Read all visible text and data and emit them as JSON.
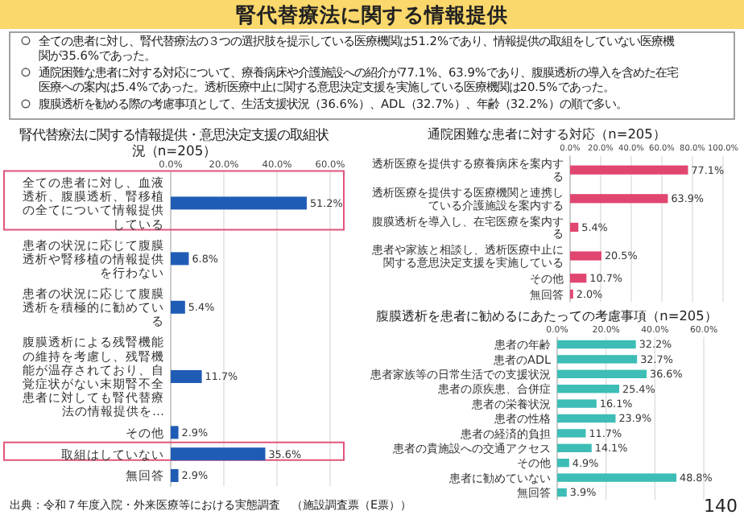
{
  "chart_data": [
    {
      "type": "other",
      "title": "腎代替療法に関する情報提供",
      "annotations": [
        "全ての患者に対し、腎代替療法の３つの選択肢を提示している医療機関は51.2%であり、情報提供の取組をしていない医療機関が35.6%であった。",
        "通院困難な患者に対する対応について、療養病床や介護施設への紹介が77.1%、63.9%であり、腹膜透析の導入を含めた在宅医療への案内は5.4%であった。透析医療中止に関する意思決定支援を実施している医療機関は20.5%であった。",
        "腹膜透析を勧める際の考慮事項として、生活支援状況（36.6%）、ADL（32.7%）、年齢（32.2%）の順で多い。",
        "出典：令和７年度入院・外来医療等における実態調査　（施設調査票（E票））",
        "140"
      ]
    },
    {
      "type": "bar",
      "orientation": "horizontal",
      "title": "腎代替療法に関する情報提供・意思決定支援の取組状況（n=205）",
      "categories": [
        "全ての患者に対し、血液透析、腹膜透析、腎移植の全てについて情報提供している",
        "患者の状況に応じて腹膜透析や腎移植の情報提供を行わない",
        "患者の状況に応じて腹膜透析を積極的に勧めている",
        "腹膜透析による残腎機能の維持を考慮し、残腎機能が温存されており、自覚症状がない末期腎不全患者に対しても腎代替療法の情報提供を…",
        "その他",
        "取組はしていない",
        "無回答"
      ],
      "values": [
        51.2,
        6.8,
        5.4,
        11.7,
        2.9,
        35.6,
        2.9
      ],
      "value_labels": [
        "51.2%",
        "6.8%",
        "5.4%",
        "11.7%",
        "2.9%",
        "35.6%",
        "2.9%"
      ],
      "color": "#1f5cb5",
      "xlim": [
        0,
        60
      ],
      "xticks": [
        {
          "value": 0,
          "label": "0.0%"
        },
        {
          "value": 20,
          "label": "20.0%"
        },
        {
          "value": 40,
          "label": "40.0%"
        },
        {
          "value": 60,
          "label": "60.0%"
        }
      ],
      "grid": "x"
    },
    {
      "type": "bar",
      "orientation": "horizontal",
      "title": "通院困難な患者に対する対応（n=205）",
      "categories": [
        "透析医療を提供する療養病床を案内する",
        "透析医療を提供する医療機関と連携している介護施設を案内する",
        "腹膜透析を導入し、在宅医療を案内する",
        "患者や家族と相談し、透析医療中止に関する意思決定支援を実施している",
        "その他",
        "無回答"
      ],
      "values": [
        77.1,
        63.9,
        5.4,
        20.5,
        10.7,
        2.0
      ],
      "value_labels": [
        "77.1%",
        "63.9%",
        "5.4%",
        "20.5%",
        "10.7%",
        "2.0%"
      ],
      "color": "#e0466f",
      "xlim": [
        0,
        100
      ],
      "xticks": [
        {
          "value": 0,
          "label": "0.0%"
        },
        {
          "value": 20,
          "label": "20.0%"
        },
        {
          "value": 40,
          "label": "40.0%"
        },
        {
          "value": 60,
          "label": "60.0%"
        },
        {
          "value": 80,
          "label": "80.0%"
        },
        {
          "value": 100,
          "label": "100.0%"
        }
      ],
      "grid": "x"
    },
    {
      "type": "bar",
      "orientation": "horizontal",
      "title": "腹膜透析を患者に勧めるにあたっての考慮事項（n=205）",
      "categories": [
        "患者の年齢",
        "患者のADL",
        "患者家族等の日常生活での支援状況",
        "患者の原疾患、合併症",
        "患者の栄養状況",
        "患者の性格",
        "患者の経済的負担",
        "患者の貴施設への交通アクセス",
        "その他",
        "患者に勧めていない",
        "無回答"
      ],
      "values": [
        32.2,
        32.7,
        36.6,
        25.4,
        16.1,
        23.9,
        11.7,
        14.1,
        4.9,
        48.8,
        3.9
      ],
      "value_labels": [
        "32.2%",
        "32.7%",
        "36.6%",
        "25.4%",
        "16.1%",
        "23.9%",
        "11.7%",
        "14.1%",
        "4.9%",
        "48.8%",
        "3.9%"
      ],
      "color": "#3dbdb5",
      "xlim": [
        0,
        60
      ],
      "xticks": [
        {
          "value": 0,
          "label": "0.0%"
        },
        {
          "value": 20,
          "label": "20.0%"
        },
        {
          "value": 40,
          "label": "40.0%"
        },
        {
          "value": 60,
          "label": "60.0%"
        }
      ],
      "grid": "x"
    }
  ]
}
